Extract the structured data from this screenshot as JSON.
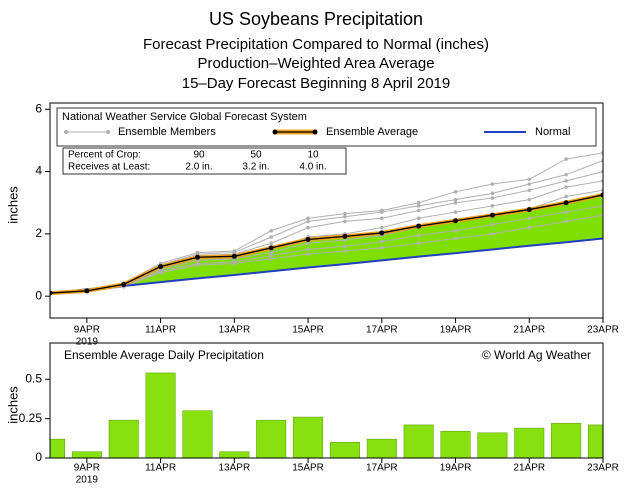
{
  "chart_data": [
    {
      "type": "line",
      "title": "US Soybeans Precipitation",
      "subtitles": [
        "Forecast Precipitation Compared to Normal (inches)",
        "Production–Weighted Area Average",
        "15–Day Forecast Beginning 8 April 2019"
      ],
      "ylabel": "inches",
      "legend_title": "National Weather Service Global Forecast System",
      "legend_table": [
        [
          "Percent of Crop:",
          "90",
          "50",
          "10"
        ],
        [
          "Receives at Least:",
          "2.0 in.",
          "3.2 in.",
          "4.0 in."
        ]
      ],
      "x": [
        8,
        9,
        10,
        11,
        12,
        13,
        14,
        15,
        16,
        17,
        18,
        19,
        20,
        21,
        22,
        23
      ],
      "xlim": [
        8,
        23
      ],
      "xticks": [
        {
          "value": 9,
          "label": "9APR"
        },
        {
          "value": 11,
          "label": "11APR"
        },
        {
          "value": 13,
          "label": "13APR"
        },
        {
          "value": 15,
          "label": "15APR"
        },
        {
          "value": 17,
          "label": "17APR"
        },
        {
          "value": 19,
          "label": "19APR"
        },
        {
          "value": 21,
          "label": "21APR"
        },
        {
          "value": 23,
          "label": "23APR"
        }
      ],
      "x_year": "2019",
      "ylim": [
        -0.7,
        6.2
      ],
      "yticks": [
        0,
        2,
        4,
        6
      ],
      "fill_color": "#7fe000",
      "members": {
        "name": "Ensemble Members",
        "color": "#b0b0b0",
        "runs": [
          [
            0.1,
            0.17,
            0.42,
            1.05,
            1.4,
            1.45,
            2.1,
            2.5,
            2.65,
            2.75,
            3.0,
            3.35,
            3.6,
            3.75,
            4.4,
            4.6
          ],
          [
            0.1,
            0.17,
            0.4,
            1.0,
            1.35,
            1.4,
            1.9,
            2.4,
            2.55,
            2.7,
            2.9,
            3.1,
            3.3,
            3.6,
            3.9,
            4.35
          ],
          [
            0.1,
            0.17,
            0.38,
            0.95,
            1.3,
            1.35,
            1.7,
            2.2,
            2.4,
            2.5,
            2.75,
            3.0,
            3.15,
            3.4,
            3.7,
            4.0
          ],
          [
            0.1,
            0.17,
            0.36,
            0.9,
            1.2,
            1.25,
            1.5,
            1.9,
            2.0,
            2.2,
            2.5,
            2.7,
            2.9,
            3.1,
            3.5,
            3.7
          ],
          [
            0.1,
            0.16,
            0.35,
            0.85,
            1.15,
            1.2,
            1.4,
            1.7,
            1.8,
            1.95,
            2.2,
            2.4,
            2.55,
            2.8,
            3.2,
            3.4
          ],
          [
            0.1,
            0.16,
            0.33,
            0.8,
            1.05,
            1.1,
            1.3,
            1.5,
            1.6,
            1.75,
            1.95,
            2.1,
            2.3,
            2.5,
            2.7,
            2.9
          ],
          [
            0.1,
            0.15,
            0.3,
            0.75,
            1.0,
            1.05,
            1.2,
            1.35,
            1.45,
            1.55,
            1.7,
            1.85,
            2.0,
            2.2,
            2.4,
            2.6
          ]
        ]
      },
      "series": [
        {
          "name": "Ensemble Average",
          "color": "#000000",
          "glow": "#f0a020",
          "values": [
            0.1,
            0.17,
            0.38,
            0.95,
            1.25,
            1.28,
            1.55,
            1.82,
            1.92,
            2.03,
            2.25,
            2.42,
            2.6,
            2.78,
            3.0,
            3.25
          ]
        },
        {
          "name": "Normal",
          "color": "#2040c0",
          "values": [
            0.1,
            0.22,
            0.33,
            0.45,
            0.57,
            0.68,
            0.8,
            0.92,
            1.03,
            1.15,
            1.27,
            1.38,
            1.5,
            1.62,
            1.73,
            1.85
          ]
        }
      ]
    },
    {
      "type": "bar",
      "title": "Ensemble Average Daily Precipitation",
      "credit": "© World Ag Weather",
      "ylabel": "inches",
      "x": [
        8,
        9,
        10,
        11,
        12,
        13,
        14,
        15,
        16,
        17,
        18,
        19,
        20,
        21,
        22,
        23
      ],
      "values": [
        0.12,
        0.04,
        0.24,
        0.54,
        0.3,
        0.04,
        0.24,
        0.26,
        0.1,
        0.12,
        0.21,
        0.17,
        0.16,
        0.19,
        0.22,
        0.21
      ],
      "color": "#88e010",
      "xlim": [
        8,
        23
      ],
      "xticks": [
        {
          "value": 9,
          "label": "9APR"
        },
        {
          "value": 11,
          "label": "11APR"
        },
        {
          "value": 13,
          "label": "13APR"
        },
        {
          "value": 15,
          "label": "15APR"
        },
        {
          "value": 17,
          "label": "17APR"
        },
        {
          "value": 19,
          "label": "19APR"
        },
        {
          "value": 21,
          "label": "21APR"
        },
        {
          "value": 23,
          "label": "23APR"
        }
      ],
      "x_year": "2019",
      "ylim": [
        0,
        0.73
      ],
      "yticks": [
        0,
        0.25,
        0.5
      ]
    }
  ]
}
